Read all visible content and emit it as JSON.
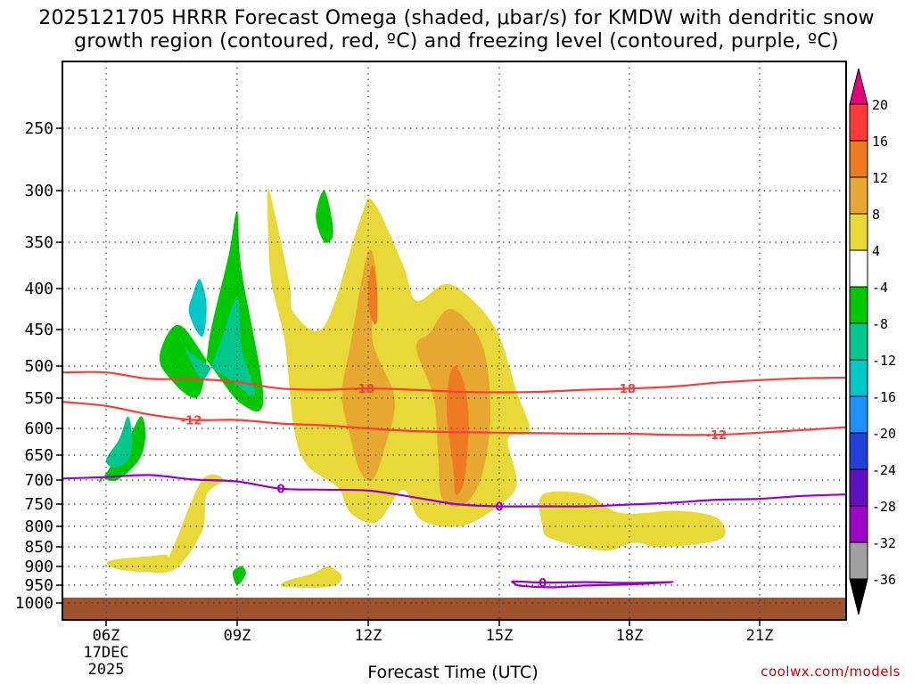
{
  "title_line1": "2025121705 HRRR Forecast Omega (shaded, μbar/s) for KMDW with dendritic snow",
  "title_line2": "growth region (contoured, red, ºC) and freezing level (contoured, purple, ºC)",
  "credit": "coolwx.com/models",
  "chart_data": {
    "type": "area",
    "title": "2025121705 HRRR Forecast Omega (shaded, μbar/s) for KMDW with dendritic snow growth region (contoured, red, ºC) and freezing level (contoured, purple, ºC)",
    "xlabel": "Forecast Time (UTC)",
    "ylabel": "",
    "x_hours_range": [
      5,
      23
    ],
    "x_ticks": [
      {
        "hour": 6,
        "label": "06Z"
      },
      {
        "hour": 9,
        "label": "09Z"
      },
      {
        "hour": 12,
        "label": "12Z"
      },
      {
        "hour": 15,
        "label": "15Z"
      },
      {
        "hour": 18,
        "label": "18Z"
      },
      {
        "hour": 21,
        "label": "21Z"
      }
    ],
    "x_date_label": [
      "17DEC",
      "2025"
    ],
    "y_pressure_range": [
      1050,
      200
    ],
    "y_ticks": [
      250,
      300,
      350,
      400,
      450,
      500,
      550,
      600,
      650,
      700,
      750,
      800,
      850,
      900,
      950,
      1000
    ],
    "grid": true,
    "legend": "colorbar-right",
    "colorbar": {
      "labels": [
        "20",
        "16",
        "12",
        "8",
        "4",
        "-4",
        "-8",
        "-12",
        "-16",
        "-20",
        "-24",
        "-28",
        "-32",
        "-36"
      ],
      "colors": [
        "#e8007a",
        "#ff3a3a",
        "#f07a20",
        "#e6a830",
        "#e8d838",
        "#ffffff",
        "#00c800",
        "#00c88c",
        "#00c8c8",
        "#1e90ff",
        "#2040d8",
        "#6010c0",
        "#a000c8",
        "#a0a0a0",
        "#000000"
      ]
    },
    "ground_color": "#a0522d",
    "omega_regions": [
      {
        "value": -8,
        "color": "#00c800",
        "points": [
          [
            7.3,
            505
          ],
          [
            8.1,
            548
          ],
          [
            8.4,
            450
          ],
          [
            8.8,
            365
          ],
          [
            9.0,
            320
          ],
          [
            9.1,
            380
          ],
          [
            9.6,
            550
          ],
          [
            9.1,
            560
          ],
          [
            8.4,
            500
          ],
          [
            7.7,
            445
          ],
          [
            7.3,
            470
          ]
        ]
      },
      {
        "value": -12,
        "color": "#00c88c",
        "points": [
          [
            7.7,
            460
          ],
          [
            8.2,
            520
          ],
          [
            8.6,
            470
          ],
          [
            9.0,
            410
          ],
          [
            9.1,
            475
          ],
          [
            9.4,
            545
          ],
          [
            8.8,
            520
          ],
          [
            7.9,
            480
          ]
        ]
      },
      {
        "value": -16,
        "color": "#00c8c8",
        "points": [
          [
            7.9,
            430
          ],
          [
            8.2,
            460
          ],
          [
            8.3,
            420
          ],
          [
            8.15,
            390
          ],
          [
            8.0,
            405
          ]
        ]
      },
      {
        "value": -8,
        "color": "#00c800",
        "points": [
          [
            5.9,
            700
          ],
          [
            6.5,
            620
          ],
          [
            6.8,
            580
          ],
          [
            6.9,
            615
          ],
          [
            6.75,
            660
          ],
          [
            6.25,
            700
          ],
          [
            5.9,
            695
          ]
        ]
      },
      {
        "value": -12,
        "color": "#00c88c",
        "points": [
          [
            6.0,
            660
          ],
          [
            6.3,
            620
          ],
          [
            6.5,
            580
          ],
          [
            6.6,
            620
          ],
          [
            6.5,
            660
          ],
          [
            6.2,
            675
          ]
        ]
      },
      {
        "value": -8,
        "color": "#00c800",
        "points": [
          [
            10.8,
            325
          ],
          [
            11.0,
            300
          ],
          [
            11.2,
            340
          ],
          [
            11.0,
            350
          ]
        ]
      },
      {
        "value": -8,
        "color": "#00c800",
        "points": [
          [
            8.9,
            915
          ],
          [
            9.1,
            900
          ],
          [
            9.2,
            920
          ],
          [
            9.0,
            950
          ]
        ]
      },
      {
        "value": 4,
        "color": "#e8d838",
        "points": [
          [
            9.7,
            300
          ],
          [
            9.9,
            330
          ],
          [
            10.2,
            395
          ],
          [
            10.3,
            430
          ],
          [
            11.0,
            445
          ],
          [
            11.8,
            330
          ],
          [
            12.1,
            310
          ],
          [
            12.8,
            375
          ],
          [
            13.1,
            415
          ],
          [
            13.8,
            395
          ],
          [
            14.5,
            420
          ],
          [
            15.0,
            460
          ],
          [
            15.4,
            540
          ],
          [
            15.7,
            605
          ],
          [
            15.2,
            620
          ],
          [
            15.4,
            710
          ],
          [
            14.9,
            760
          ],
          [
            14.1,
            800
          ],
          [
            13.2,
            785
          ],
          [
            12.8,
            720
          ],
          [
            12.2,
            790
          ],
          [
            11.6,
            770
          ],
          [
            11.3,
            715
          ],
          [
            10.6,
            670
          ],
          [
            10.3,
            600
          ],
          [
            10.1,
            470
          ],
          [
            9.9,
            420
          ],
          [
            9.75,
            380
          ]
        ]
      },
      {
        "value": 4,
        "color": "#e8d838",
        "points": [
          [
            7.5,
            860
          ],
          [
            8.2,
            700
          ],
          [
            8.7,
            700
          ],
          [
            8.3,
            730
          ],
          [
            8.2,
            810
          ],
          [
            7.6,
            905
          ],
          [
            6.9,
            915
          ],
          [
            6.2,
            905
          ],
          [
            6.1,
            885
          ],
          [
            7.3,
            870
          ]
        ]
      },
      {
        "value": 4,
        "color": "#e8d838",
        "points": [
          [
            10.1,
            940
          ],
          [
            10.7,
            920
          ],
          [
            11.1,
            900
          ],
          [
            11.4,
            930
          ],
          [
            11.1,
            955
          ],
          [
            10.1,
            955
          ]
        ]
      },
      {
        "value": 4,
        "color": "#e8d838",
        "points": [
          [
            16.0,
            730
          ],
          [
            17.0,
            730
          ],
          [
            17.8,
            770
          ],
          [
            19.1,
            765
          ],
          [
            20.0,
            780
          ],
          [
            20.2,
            820
          ],
          [
            19.8,
            840
          ],
          [
            18.7,
            850
          ],
          [
            18.1,
            840
          ],
          [
            17.4,
            860
          ],
          [
            16.2,
            830
          ],
          [
            16.0,
            800
          ]
        ]
      },
      {
        "value": 8,
        "color": "#e6a830",
        "points": [
          [
            12.0,
            360
          ],
          [
            12.2,
            395
          ],
          [
            12.1,
            465
          ],
          [
            12.6,
            550
          ],
          [
            12.4,
            630
          ],
          [
            12.1,
            700
          ],
          [
            11.8,
            680
          ],
          [
            11.6,
            620
          ],
          [
            11.4,
            545
          ],
          [
            11.6,
            470
          ]
        ]
      },
      {
        "value": 8,
        "color": "#e6a830",
        "points": [
          [
            13.4,
            455
          ],
          [
            13.9,
            425
          ],
          [
            14.6,
            470
          ],
          [
            14.8,
            575
          ],
          [
            14.6,
            690
          ],
          [
            14.2,
            750
          ],
          [
            13.7,
            740
          ],
          [
            13.6,
            650
          ],
          [
            13.5,
            550
          ],
          [
            13.1,
            475
          ]
        ]
      },
      {
        "value": 12,
        "color": "#f07a20",
        "points": [
          [
            14.0,
            500
          ],
          [
            14.2,
            530
          ],
          [
            14.3,
            590
          ],
          [
            14.2,
            700
          ],
          [
            14.0,
            730
          ],
          [
            13.95,
            680
          ],
          [
            13.8,
            575
          ],
          [
            13.85,
            520
          ]
        ]
      },
      {
        "value": 12,
        "color": "#f07a20",
        "points": [
          [
            12.1,
            375
          ],
          [
            12.2,
            400
          ],
          [
            12.2,
            440
          ],
          [
            12.1,
            440
          ],
          [
            12.0,
            420
          ],
          [
            12.0,
            395
          ]
        ]
      }
    ],
    "dgz_minus18": {
      "label": "-18",
      "points": [
        [
          5.0,
          510
        ],
        [
          6.0,
          510
        ],
        [
          7.0,
          520
        ],
        [
          8.0,
          520
        ],
        [
          9.0,
          525
        ],
        [
          10.0,
          535
        ],
        [
          11.0,
          537
        ],
        [
          12.0,
          535
        ],
        [
          13.0,
          537
        ],
        [
          14.0,
          540
        ],
        [
          15.0,
          541
        ],
        [
          16.0,
          540
        ],
        [
          17.0,
          537
        ],
        [
          18.0,
          535
        ],
        [
          19.0,
          532
        ],
        [
          20.0,
          526
        ],
        [
          21.0,
          522
        ],
        [
          22.0,
          519
        ],
        [
          23.0,
          518
        ]
      ],
      "label_hours": [
        11.9,
        17.9
      ]
    },
    "dgz_minus12": {
      "label": "-12",
      "points": [
        [
          5.0,
          556
        ],
        [
          6.0,
          563
        ],
        [
          7.0,
          577
        ],
        [
          8.0,
          586
        ],
        [
          9.0,
          586
        ],
        [
          10.0,
          592
        ],
        [
          11.0,
          595
        ],
        [
          12.0,
          600
        ],
        [
          13.0,
          605
        ],
        [
          14.0,
          607
        ],
        [
          15.0,
          608
        ],
        [
          16.0,
          609
        ],
        [
          17.0,
          610
        ],
        [
          18.0,
          610
        ],
        [
          19.0,
          612
        ],
        [
          20.0,
          612
        ],
        [
          21.0,
          608
        ],
        [
          22.0,
          603
        ],
        [
          23.0,
          598
        ]
      ],
      "label_hours": [
        7.95,
        20.0
      ]
    },
    "freezing_level": {
      "label": "0",
      "points": [
        [
          5.0,
          697
        ],
        [
          6.0,
          694
        ],
        [
          7.0,
          690
        ],
        [
          8.0,
          699
        ],
        [
          9.0,
          703
        ],
        [
          10.0,
          718
        ],
        [
          11.0,
          720
        ],
        [
          12.0,
          722
        ],
        [
          13.0,
          735
        ],
        [
          14.0,
          750
        ],
        [
          15.0,
          755
        ],
        [
          16.0,
          755
        ],
        [
          17.0,
          755
        ],
        [
          18.0,
          751
        ],
        [
          19.0,
          747
        ],
        [
          20.0,
          741
        ],
        [
          21.0,
          739
        ],
        [
          22.0,
          733
        ],
        [
          23.0,
          730
        ]
      ],
      "label_hours": [
        10.0,
        15.0
      ]
    },
    "freezing_level_loop": {
      "label": "0",
      "points": [
        [
          15.35,
          940
        ],
        [
          16.0,
          943
        ],
        [
          17.0,
          942
        ],
        [
          18.0,
          944
        ],
        [
          19.0,
          942
        ],
        [
          18.0,
          948
        ],
        [
          17.0,
          951
        ],
        [
          16.2,
          956
        ],
        [
          15.5,
          952
        ],
        [
          15.35,
          945
        ]
      ],
      "label_hours": [
        16.0
      ]
    }
  }
}
